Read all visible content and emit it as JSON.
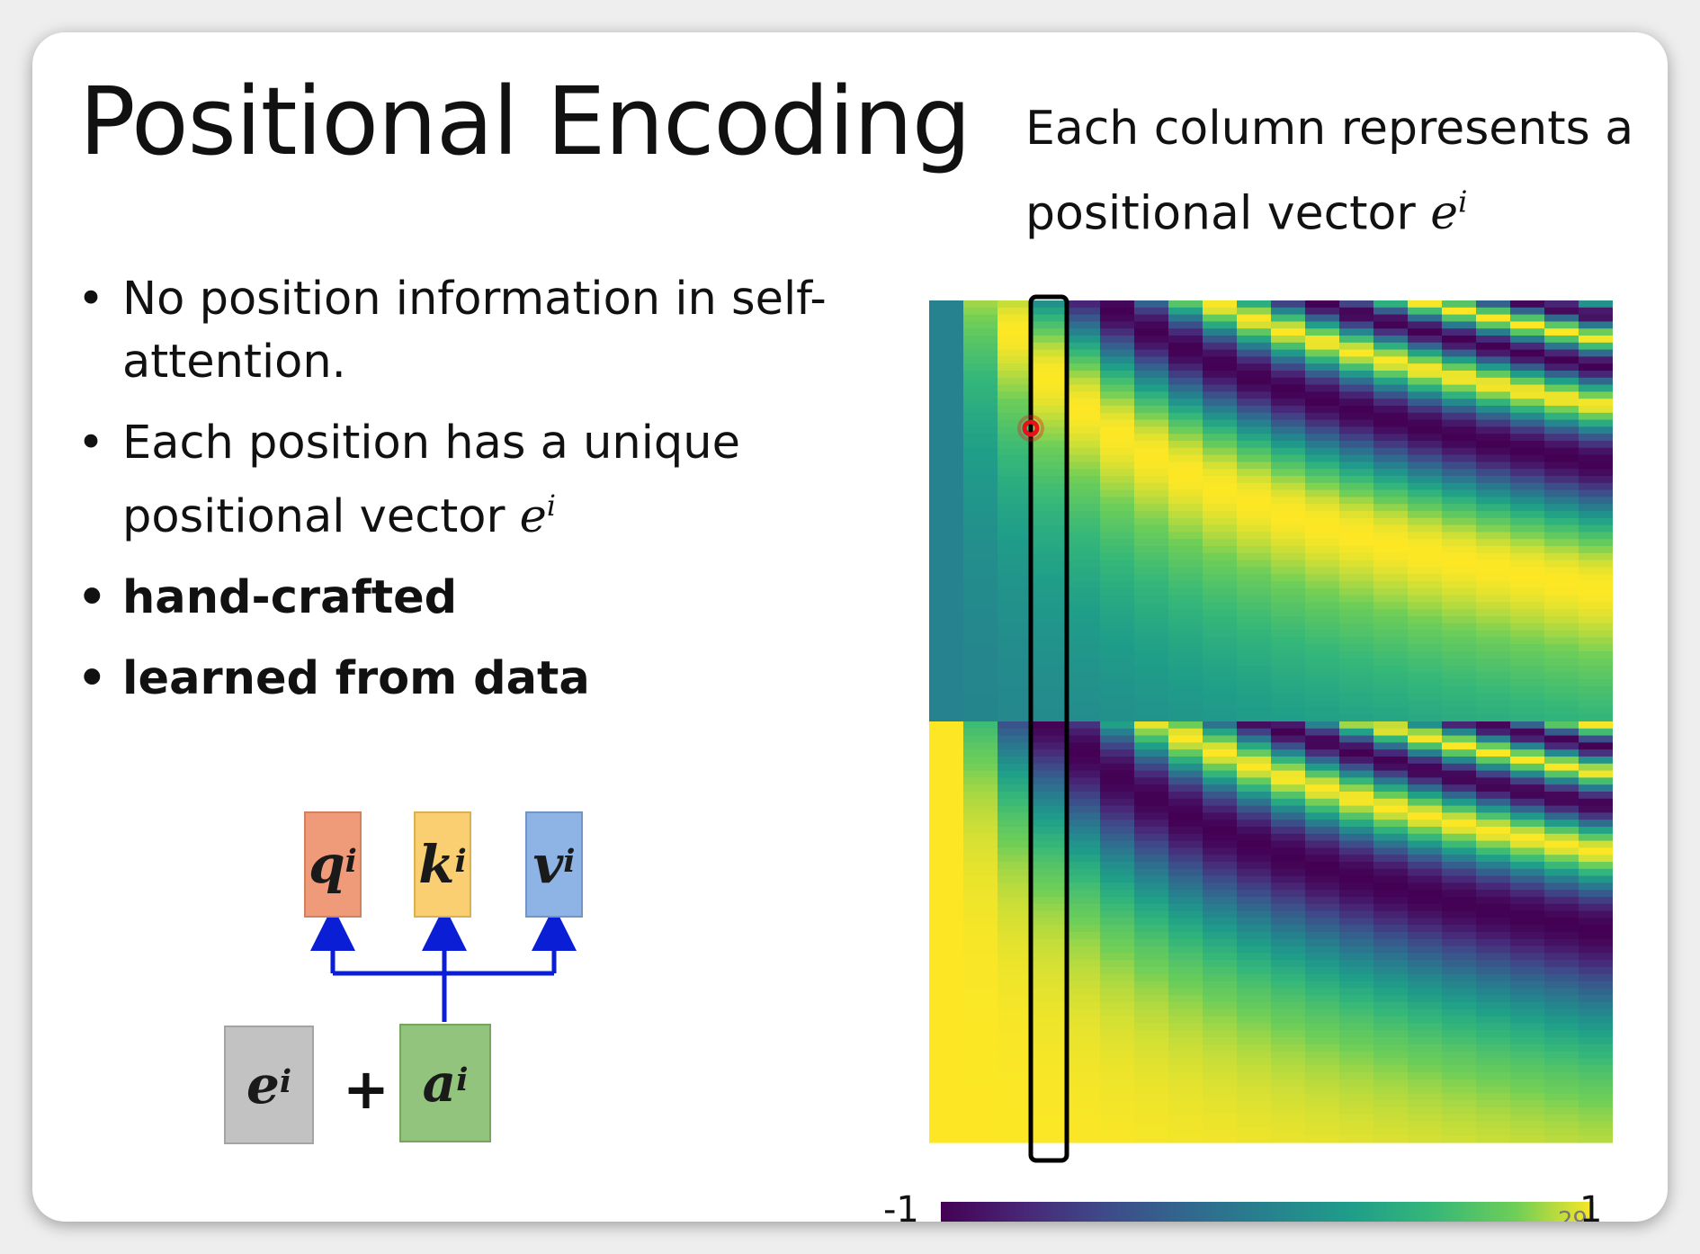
{
  "title": "Positional Encoding",
  "caption": {
    "line1": "Each column represents a",
    "line2_text": "positional vector ",
    "line2_math": "e",
    "line2_sup": "i"
  },
  "bullets": [
    {
      "text": "No position information in self-attention.",
      "bold": false
    },
    {
      "text": "Each position has a unique positional vector ",
      "math": "e",
      "sup": "i",
      "bold": false
    },
    {
      "text": "hand-crafted",
      "bold": true
    },
    {
      "text": "learned from data",
      "bold": true
    }
  ],
  "diagram": {
    "q": {
      "letter": "q",
      "sup": "i",
      "color": "#ef9a78"
    },
    "k": {
      "letter": "k",
      "sup": "i",
      "color": "#f9cf72"
    },
    "v": {
      "letter": "v",
      "sup": "i",
      "color": "#8db4e4"
    },
    "e": {
      "letter": "e",
      "sup": "i",
      "color": "#c2c2c2"
    },
    "a": {
      "letter": "a",
      "sup": "i",
      "color": "#93c47d"
    },
    "plus": "+",
    "arrow_color": "#0a1ed6"
  },
  "heatmap": {
    "colormap": "viridis",
    "columns": 20,
    "colorbar_min_label": "-1",
    "colorbar_max_label": "1"
  },
  "page_number": "29",
  "colors": {
    "highlight_box": "#000000",
    "marker": "#e8101a"
  }
}
